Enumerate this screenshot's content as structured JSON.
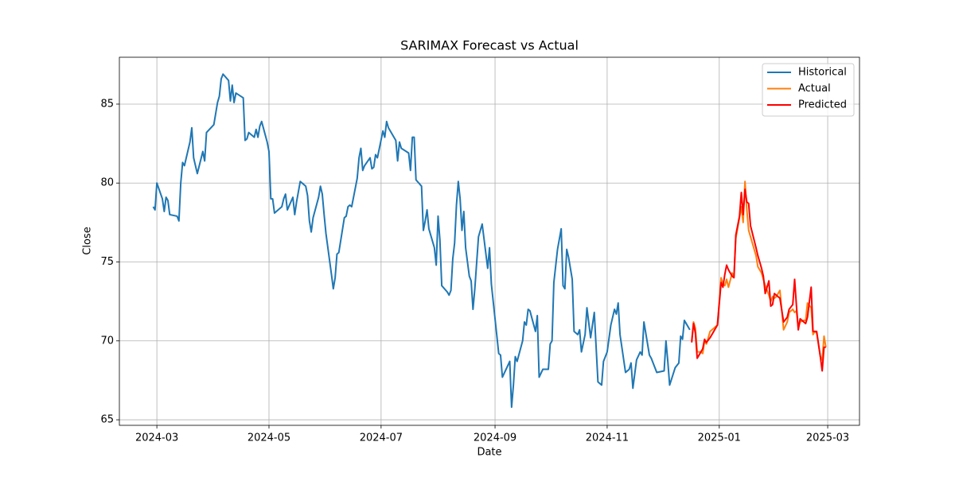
{
  "chart_data": {
    "type": "line",
    "title": "SARIMAX Forecast vs Actual",
    "x_label": "Date",
    "y_label": "Close",
    "xlim": [
      19762.6,
      20165.3
    ],
    "ylim": [
      64.65,
      87.97
    ],
    "xticks": [
      {
        "value": 19783,
        "label": "2024-03"
      },
      {
        "value": 19844,
        "label": "2024-05"
      },
      {
        "value": 19905,
        "label": "2024-07"
      },
      {
        "value": 19967,
        "label": "2024-09"
      },
      {
        "value": 20028,
        "label": "2024-11"
      },
      {
        "value": 20089,
        "label": "2025-01"
      },
      {
        "value": 20148,
        "label": "2025-03"
      }
    ],
    "yticks": [
      65,
      70,
      75,
      80,
      85
    ],
    "grid": true,
    "legend": "upper right",
    "series": [
      {
        "name": "Historical",
        "color": "#1f77b4",
        "x": [
          19781,
          19782,
          19783,
          19786,
          19787,
          19788,
          19789,
          19790,
          19794,
          19795,
          19796,
          19797,
          19798,
          19801,
          19802,
          19803,
          19805,
          19808,
          19809,
          19810,
          19814,
          19816,
          19817,
          19818,
          19819,
          19822,
          19823,
          19824,
          19825,
          19826,
          19830,
          19831,
          19832,
          19833,
          19836,
          19837,
          19838,
          19839,
          19840,
          19843,
          19844,
          19845,
          19846,
          19847,
          19850,
          19851,
          19852,
          19853,
          19854,
          19857,
          19858,
          19859,
          19861,
          19864,
          19865,
          19866,
          19867,
          19868,
          19871,
          19872,
          19873,
          19874,
          19875,
          19878,
          19879,
          19880,
          19881,
          19882,
          19885,
          19886,
          19887,
          19888,
          19889,
          19892,
          19893,
          19894,
          19895,
          19896,
          19899,
          19900,
          19901,
          19902,
          19903,
          19906,
          19907,
          19908,
          19909,
          19913,
          19914,
          19915,
          19916,
          19920,
          19921,
          19922,
          19923,
          19924,
          19927,
          19928,
          19929,
          19930,
          19931,
          19934,
          19935,
          19936,
          19937,
          19938,
          19941,
          19942,
          19943,
          19944,
          19945,
          19946,
          19947,
          19948,
          19949,
          19950,
          19951,
          19953,
          19954,
          19955,
          19956,
          19958,
          19960,
          19963,
          19964,
          19965,
          19969,
          19970,
          19971,
          19975,
          19976,
          19977,
          19978,
          19979,
          19982,
          19983,
          19984,
          19985,
          19986,
          19989,
          19990,
          19991,
          19993,
          19996,
          19997,
          19998,
          19999,
          20001,
          20003,
          20004,
          20005,
          20006,
          20007,
          20009,
          20010,
          20012,
          20013,
          20014,
          20016,
          20017,
          20019,
          20021,
          20023,
          20025,
          20026,
          20028,
          20030,
          20032,
          20033,
          20034,
          20035,
          20038,
          20040,
          20041,
          20042,
          20044,
          20046,
          20047,
          20048,
          20051,
          20052,
          20055,
          20059,
          20060,
          20061,
          20062,
          20065,
          20067,
          20068,
          20069,
          20070,
          20071,
          20073
        ],
        "values": [
          78.5,
          78.3,
          80.0,
          79.0,
          78.2,
          79.1,
          78.9,
          78.0,
          77.9,
          77.6,
          80.0,
          81.3,
          81.1,
          82.6,
          83.5,
          81.6,
          80.6,
          82.0,
          81.4,
          83.2,
          83.7,
          85.1,
          85.5,
          86.6,
          86.9,
          86.5,
          85.2,
          86.2,
          85.1,
          85.7,
          85.4,
          82.7,
          82.8,
          83.2,
          82.9,
          83.4,
          82.9,
          83.6,
          83.9,
          82.6,
          82.0,
          79.0,
          79.0,
          78.1,
          78.4,
          78.5,
          79.0,
          79.3,
          78.3,
          79.1,
          78.0,
          78.8,
          80.1,
          79.8,
          79.2,
          77.6,
          76.9,
          77.8,
          79.1,
          79.8,
          79.3,
          78.0,
          76.8,
          74.2,
          73.3,
          74.0,
          75.5,
          75.6,
          77.8,
          77.9,
          78.5,
          78.6,
          78.5,
          80.3,
          81.6,
          82.2,
          80.8,
          81.1,
          81.6,
          80.9,
          81.0,
          81.8,
          81.6,
          83.3,
          82.9,
          83.9,
          83.5,
          82.7,
          81.4,
          82.6,
          82.2,
          81.9,
          80.8,
          82.9,
          82.9,
          80.2,
          79.8,
          77.0,
          77.6,
          78.3,
          77.1,
          75.9,
          74.8,
          77.9,
          76.4,
          73.5,
          73.1,
          72.9,
          73.2,
          75.2,
          76.2,
          78.6,
          80.1,
          79.0,
          77.0,
          78.2,
          75.9,
          74.1,
          73.8,
          72.0,
          73.3,
          76.6,
          77.4,
          74.6,
          75.9,
          73.6,
          69.2,
          69.1,
          67.7,
          68.7,
          65.8,
          67.2,
          69.0,
          68.7,
          70.0,
          71.2,
          71.0,
          72.0,
          71.9,
          70.6,
          71.6,
          67.7,
          68.2,
          68.2,
          69.8,
          70.0,
          73.7,
          75.8,
          77.1,
          73.5,
          73.3,
          75.8,
          75.3,
          73.9,
          70.6,
          70.4,
          70.7,
          69.3,
          70.4,
          72.1,
          70.2,
          71.8,
          67.4,
          67.2,
          68.7,
          69.3,
          71.0,
          72.0,
          71.7,
          72.4,
          70.4,
          68.0,
          68.2,
          68.6,
          67.0,
          68.8,
          69.3,
          69.1,
          71.2,
          69.1,
          68.9,
          68.0,
          68.1,
          70.0,
          68.7,
          67.2,
          68.3,
          68.6,
          70.3,
          70.1,
          71.3,
          71.1,
          70.7
        ]
      },
      {
        "name": "Actual",
        "color": "#ff7f0e",
        "x": [
          20074,
          20075,
          20076,
          20077,
          20079,
          20080,
          20081,
          20082,
          20084,
          20088,
          20090,
          20091,
          20092,
          20093,
          20094,
          20096,
          20097,
          20098,
          20100,
          20101,
          20102,
          20103,
          20104,
          20105,
          20106,
          20109,
          20110,
          20112,
          20113,
          20114,
          20116,
          20117,
          20118,
          20119,
          20120,
          20122,
          20124,
          20126,
          20127,
          20129,
          20130,
          20131,
          20132,
          20133,
          20135,
          20136,
          20137,
          20139,
          20140,
          20141,
          20142,
          20144,
          20145,
          20146,
          20147
        ],
        "values": [
          70.0,
          71.2,
          70.8,
          69.3,
          69.3,
          69.2,
          70.0,
          69.8,
          70.6,
          71.0,
          74.0,
          73.6,
          73.5,
          73.9,
          73.4,
          74.3,
          74.1,
          76.5,
          77.8,
          78.5,
          77.5,
          80.1,
          78.3,
          77.0,
          76.6,
          75.4,
          74.7,
          74.3,
          73.9,
          73.5,
          72.9,
          72.5,
          72.8,
          72.7,
          72.8,
          73.2,
          70.7,
          71.2,
          71.8,
          72.0,
          71.8,
          71.9,
          70.8,
          71.2,
          71.3,
          71.3,
          72.4,
          72.1,
          70.4,
          70.6,
          70.5,
          69.0,
          68.8,
          70.3,
          69.6
        ]
      },
      {
        "name": "Predicted",
        "color": "#ff0000",
        "x": [
          20074,
          20075,
          20076,
          20077,
          20079,
          20080,
          20081,
          20082,
          20084,
          20088,
          20090,
          20091,
          20092,
          20093,
          20094,
          20096,
          20097,
          20098,
          20100,
          20101,
          20102,
          20103,
          20104,
          20105,
          20106,
          20109,
          20110,
          20112,
          20113,
          20114,
          20116,
          20117,
          20118,
          20119,
          20120,
          20122,
          20124,
          20126,
          20127,
          20129,
          20130,
          20131,
          20132,
          20133,
          20135,
          20136,
          20137,
          20139,
          20140,
          20141,
          20142,
          20144,
          20145,
          20146,
          20147
        ],
        "values": [
          69.9,
          71.1,
          70.5,
          68.9,
          69.3,
          69.5,
          70.1,
          69.9,
          70.2,
          71.0,
          73.7,
          73.4,
          74.2,
          74.8,
          74.5,
          74.1,
          74.0,
          76.7,
          77.9,
          79.4,
          78.0,
          79.6,
          78.8,
          78.7,
          77.3,
          75.9,
          75.4,
          74.6,
          74.1,
          73.0,
          73.8,
          72.2,
          72.3,
          73.0,
          72.9,
          72.7,
          71.2,
          71.5,
          72.0,
          72.3,
          73.9,
          72.2,
          70.7,
          71.4,
          71.2,
          71.1,
          71.5,
          73.4,
          70.6,
          70.6,
          70.6,
          69.0,
          68.1,
          69.6,
          69.6
        ]
      }
    ]
  }
}
